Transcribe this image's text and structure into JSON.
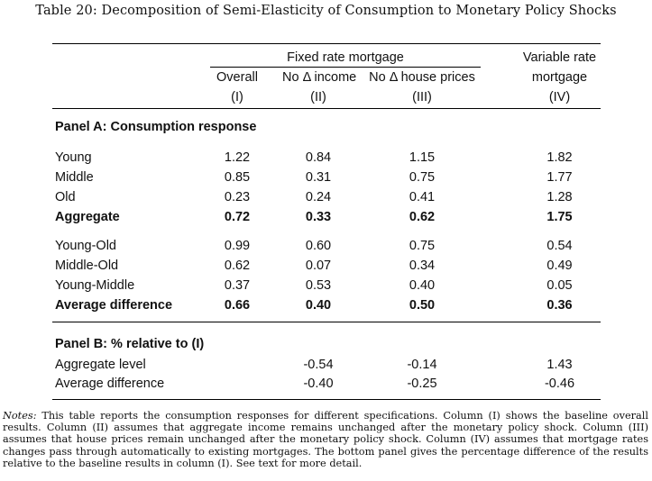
{
  "caption": "Table 20: Decomposition of Semi-Elasticity of Consumption to Monetary Policy Shocks",
  "header": {
    "fixed_group": "Fixed rate mortgage",
    "variable_group_line1": "Variable rate",
    "variable_group_line2": "mortgage",
    "columns": [
      {
        "label": "Overall",
        "numeral": "(I)"
      },
      {
        "label": "No Δ income",
        "numeral": "(II)"
      },
      {
        "label": "No Δ house prices",
        "numeral": "(III)"
      },
      {
        "label": "",
        "numeral": "(IV)"
      }
    ]
  },
  "panel_a": {
    "title": "Panel A: Consumption response",
    "rows": [
      {
        "label": "Young",
        "values": [
          "1.22",
          "0.84",
          "1.15",
          "1.82"
        ],
        "bold": false
      },
      {
        "label": "Middle",
        "values": [
          "0.85",
          "0.31",
          "0.75",
          "1.77"
        ],
        "bold": false
      },
      {
        "label": "Old",
        "values": [
          "0.23",
          "0.24",
          "0.41",
          "1.28"
        ],
        "bold": false
      },
      {
        "label": "Aggregate",
        "values": [
          "0.72",
          "0.33",
          "0.62",
          "1.75"
        ],
        "bold": true
      },
      {
        "label": "Young-Old",
        "values": [
          "0.99",
          "0.60",
          "0.75",
          "0.54"
        ],
        "bold": false
      },
      {
        "label": "Middle-Old",
        "values": [
          "0.62",
          "0.07",
          "0.34",
          "0.49"
        ],
        "bold": false
      },
      {
        "label": "Young-Middle",
        "values": [
          "0.37",
          "0.53",
          "0.40",
          "0.05"
        ],
        "bold": false
      },
      {
        "label": "Average difference",
        "values": [
          "0.66",
          "0.40",
          "0.50",
          "0.36"
        ],
        "bold": true
      }
    ]
  },
  "panel_b": {
    "title": "Panel B: % relative to (I)",
    "rows": [
      {
        "label": "Aggregate level",
        "values": [
          "",
          "-0.54",
          "-0.14",
          "1.43"
        ]
      },
      {
        "label": "Average difference",
        "values": [
          "",
          "-0.40",
          "-0.25",
          "-0.46"
        ]
      }
    ]
  },
  "notes": {
    "lead": "Notes:",
    "text": " This table reports the consumption responses for different specifications. Column (I) shows the baseline overall results. Column (II) assumes that aggregate income remains unchanged after the monetary policy shock. Column (III) assumes that house prices remain unchanged after the monetary policy shock. Column (IV) assumes that mortgage rates changes pass through automatically to existing mortgages. The bottom panel gives the percentage difference of the results relative to the baseline results in column (I). See text for more detail."
  }
}
